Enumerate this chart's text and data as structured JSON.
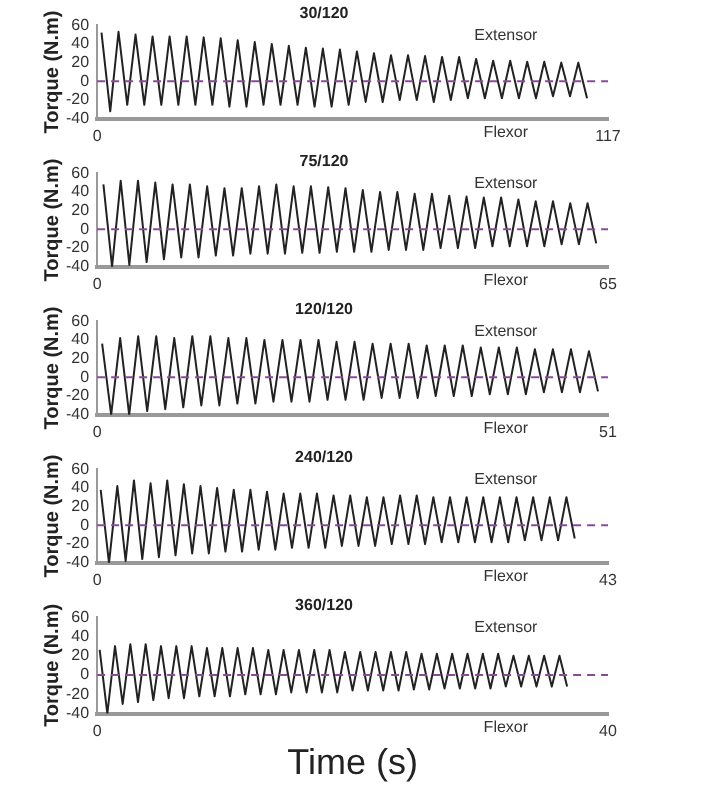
{
  "chart_data": [
    {
      "type": "line",
      "title": "30/120",
      "ylabel": "Torque (N.m)",
      "annotations": [
        "Extensor",
        "Flexor"
      ],
      "xlim": [
        0,
        117
      ],
      "xticks": [
        0,
        117
      ],
      "ylim": [
        -40,
        60
      ],
      "yticks": [
        -40,
        -20,
        0,
        20,
        40,
        60
      ],
      "grid": false,
      "legend": false,
      "marker": "none",
      "line_style": "solid",
      "ref_lines": [
        {
          "axis": "y",
          "value": 0,
          "color": "#8a4a9a",
          "line_style": "dashed"
        }
      ],
      "series": [
        {
          "color": "#222222",
          "x": [
            1,
            3,
            4.9,
            6.9,
            8.8,
            10.8,
            12.7,
            14.7,
            16.6,
            18.6,
            20.5,
            22.5,
            24.4,
            26.4,
            28.3,
            30.3,
            32.2,
            34.2,
            36.1,
            38.1,
            40,
            42,
            43.9,
            45.9,
            47.8,
            49.8,
            51.7,
            53.7,
            55.6,
            57.6,
            59.5,
            61.5,
            63.4,
            65.4,
            67.3,
            69.3,
            71.2,
            73.2,
            75.1,
            77.1,
            79,
            81,
            82.9,
            84.9,
            86.8,
            88.8,
            90.7,
            92.7,
            94.6,
            96.6,
            98.5,
            100.5,
            102.4,
            104.4,
            106.3,
            108.3,
            110.2,
            112.2
          ],
          "values": [
            52,
            -32,
            53,
            -25,
            50,
            -25,
            48,
            -25,
            48,
            -25,
            48,
            -25,
            47,
            -25,
            46,
            -27,
            44,
            -27,
            42,
            -25,
            40,
            -25,
            38,
            -25,
            36,
            -27,
            35,
            -27,
            34,
            -25,
            32,
            -22,
            30,
            -22,
            28,
            -20,
            28,
            -20,
            27,
            -22,
            26,
            -20,
            26,
            -18,
            24,
            -18,
            22,
            -18,
            22,
            -18,
            21,
            -18,
            21,
            -16,
            20,
            -16,
            20,
            -18
          ]
        }
      ]
    },
    {
      "type": "line",
      "title": "75/120",
      "ylabel": "Torque (N.m)",
      "annotations": [
        "Extensor",
        "Flexor"
      ],
      "xlim": [
        0,
        65
      ],
      "xticks": [
        0,
        65
      ],
      "ylim": [
        -40,
        60
      ],
      "yticks": [
        -40,
        -20,
        0,
        20,
        40,
        60
      ],
      "grid": false,
      "legend": false,
      "marker": "none",
      "line_style": "solid",
      "ref_lines": [
        {
          "axis": "y",
          "value": 0,
          "color": "#8a4a9a",
          "line_style": "dashed"
        }
      ],
      "series": [
        {
          "color": "#222222",
          "x": [
            0.8,
            1.9,
            3,
            4.1,
            5.2,
            6.3,
            7.4,
            8.5,
            9.6,
            10.7,
            11.8,
            12.9,
            14,
            15.1,
            16.2,
            17.3,
            18.4,
            19.5,
            20.6,
            21.7,
            22.8,
            23.9,
            25,
            26.1,
            27.2,
            28.3,
            29.4,
            30.5,
            31.6,
            32.7,
            33.8,
            34.9,
            36,
            37.1,
            38.2,
            39.3,
            40.4,
            41.5,
            42.6,
            43.7,
            44.8,
            45.9,
            47,
            48.1,
            49.2,
            50.3,
            51.4,
            52.5,
            53.6,
            54.7,
            55.8,
            56.9,
            58,
            59.1,
            60.2,
            61.3,
            62.4,
            63.5
          ],
          "values": [
            48,
            -40,
            52,
            -38,
            52,
            -35,
            50,
            -32,
            48,
            -30,
            48,
            -30,
            46,
            -28,
            44,
            -28,
            44,
            -26,
            46,
            -26,
            48,
            -26,
            46,
            -25,
            46,
            -25,
            45,
            -24,
            44,
            -24,
            42,
            -24,
            40,
            -22,
            40,
            -22,
            38,
            -22,
            38,
            -20,
            36,
            -20,
            35,
            -20,
            34,
            -18,
            34,
            -18,
            32,
            -18,
            30,
            -18,
            30,
            -16,
            28,
            -16,
            28,
            -15
          ]
        }
      ]
    },
    {
      "type": "line",
      "title": "120/120",
      "ylabel": "Torque (N.m)",
      "annotations": [
        "Extensor",
        "Flexor"
      ],
      "xlim": [
        0,
        51
      ],
      "xticks": [
        0,
        51
      ],
      "ylim": [
        -40,
        60
      ],
      "yticks": [
        -40,
        -20,
        0,
        20,
        40,
        60
      ],
      "grid": false,
      "legend": false,
      "marker": "none",
      "line_style": "solid",
      "ref_lines": [
        {
          "axis": "y",
          "value": 0,
          "color": "#8a4a9a",
          "line_style": "dashed"
        }
      ],
      "series": [
        {
          "color": "#222222",
          "x": [
            0.5,
            1.4,
            2.3,
            3.2,
            4.1,
            5,
            5.9,
            6.8,
            7.7,
            8.6,
            9.5,
            10.4,
            11.3,
            12.2,
            13.1,
            14,
            14.9,
            15.8,
            16.7,
            17.6,
            18.5,
            19.4,
            20.3,
            21.2,
            22.1,
            23,
            23.9,
            24.8,
            25.7,
            26.6,
            27.5,
            28.4,
            29.3,
            30.2,
            31.1,
            32,
            32.9,
            33.8,
            34.7,
            35.6,
            36.5,
            37.4,
            38.3,
            39.2,
            40.1,
            41,
            41.9,
            42.8,
            43.7,
            44.6,
            45.5,
            46.4,
            47.3,
            48.2,
            49.1,
            50
          ],
          "values": [
            36,
            -40,
            42,
            -40,
            44,
            -36,
            44,
            -34,
            42,
            -32,
            44,
            -30,
            44,
            -30,
            42,
            -28,
            42,
            -28,
            40,
            -26,
            40,
            -26,
            40,
            -26,
            40,
            -24,
            38,
            -24,
            38,
            -24,
            36,
            -22,
            36,
            -22,
            36,
            -22,
            34,
            -20,
            34,
            -20,
            34,
            -20,
            32,
            -18,
            32,
            -18,
            32,
            -18,
            30,
            -16,
            30,
            -16,
            30,
            -16,
            28,
            -15
          ]
        }
      ]
    },
    {
      "type": "line",
      "title": "240/120",
      "ylabel": "Torque (N.m)",
      "annotations": [
        "Extensor",
        "Flexor"
      ],
      "xlim": [
        0,
        43
      ],
      "xticks": [
        0,
        43
      ],
      "ylim": [
        -40,
        60
      ],
      "yticks": [
        -40,
        -20,
        0,
        20,
        40,
        60
      ],
      "grid": false,
      "legend": false,
      "marker": "none",
      "line_style": "solid",
      "ref_lines": [
        {
          "axis": "y",
          "value": 0,
          "color": "#8a4a9a",
          "line_style": "dashed"
        }
      ],
      "series": [
        {
          "color": "#222222",
          "x": [
            0.3,
            1,
            1.7,
            2.4,
            3.1,
            3.8,
            4.5,
            5.2,
            5.9,
            6.6,
            7.3,
            8,
            8.7,
            9.4,
            10.1,
            10.8,
            11.5,
            12.2,
            12.9,
            13.6,
            14.3,
            15,
            15.7,
            16.4,
            17.1,
            17.8,
            18.5,
            19.2,
            19.9,
            20.6,
            21.3,
            22,
            22.7,
            23.4,
            24.1,
            24.8,
            25.5,
            26.2,
            26.9,
            27.6,
            28.3,
            29,
            29.7,
            30.4,
            31.1,
            31.8,
            32.5,
            33.2,
            33.9,
            34.6,
            35.3,
            36,
            36.7,
            37.4,
            38.1,
            38.8,
            39.5,
            40.2
          ],
          "values": [
            38,
            -40,
            42,
            -38,
            48,
            -36,
            45,
            -34,
            48,
            -32,
            44,
            -30,
            42,
            -30,
            40,
            -28,
            38,
            -28,
            38,
            -26,
            36,
            -26,
            34,
            -24,
            34,
            -24,
            34,
            -24,
            32,
            -22,
            32,
            -22,
            30,
            -22,
            30,
            -20,
            32,
            -20,
            32,
            -20,
            30,
            -18,
            30,
            -18,
            30,
            -18,
            30,
            -18,
            30,
            -18,
            30,
            -16,
            30,
            -16,
            30,
            -16,
            30,
            -14
          ]
        }
      ]
    },
    {
      "type": "line",
      "title": "360/120",
      "ylabel": "Torque (N.m)",
      "xlabel": "Time (s)",
      "annotations": [
        "Extensor",
        "Flexor"
      ],
      "xlim": [
        0,
        40
      ],
      "xticks": [
        0,
        40
      ],
      "ylim": [
        -40,
        60
      ],
      "yticks": [
        -40,
        -20,
        0,
        20,
        40,
        60
      ],
      "grid": false,
      "legend": false,
      "marker": "none",
      "line_style": "solid",
      "ref_lines": [
        {
          "axis": "y",
          "value": 0,
          "color": "#8a4a9a",
          "line_style": "dashed"
        }
      ],
      "series": [
        {
          "color": "#222222",
          "x": [
            0.2,
            0.8,
            1.4,
            2,
            2.6,
            3.2,
            3.8,
            4.4,
            5,
            5.6,
            6.2,
            6.8,
            7.4,
            8,
            8.6,
            9.2,
            9.8,
            10.4,
            11,
            11.6,
            12.2,
            12.8,
            13.4,
            14,
            14.6,
            15.2,
            15.8,
            16.4,
            17,
            17.6,
            18.2,
            18.8,
            19.4,
            20,
            20.6,
            21.2,
            21.8,
            22.4,
            23,
            23.6,
            24.2,
            24.8,
            25.4,
            26,
            26.6,
            27.2,
            27.8,
            28.4,
            29,
            29.6,
            30.2,
            30.8,
            31.4,
            32,
            32.6,
            33.2,
            33.8,
            34.4,
            35,
            35.6,
            36.2,
            36.8
          ],
          "values": [
            26,
            -40,
            30,
            -30,
            32,
            -28,
            32,
            -26,
            30,
            -24,
            30,
            -24,
            30,
            -22,
            28,
            -22,
            28,
            -22,
            28,
            -20,
            28,
            -20,
            26,
            -20,
            26,
            -18,
            26,
            -18,
            26,
            -18,
            26,
            -18,
            24,
            -16,
            24,
            -16,
            24,
            -16,
            24,
            -16,
            24,
            -15,
            22,
            -15,
            22,
            -14,
            22,
            -14,
            22,
            -14,
            22,
            -14,
            22,
            -12,
            20,
            -12,
            20,
            -12,
            20,
            -12,
            20,
            -12
          ]
        }
      ]
    }
  ]
}
